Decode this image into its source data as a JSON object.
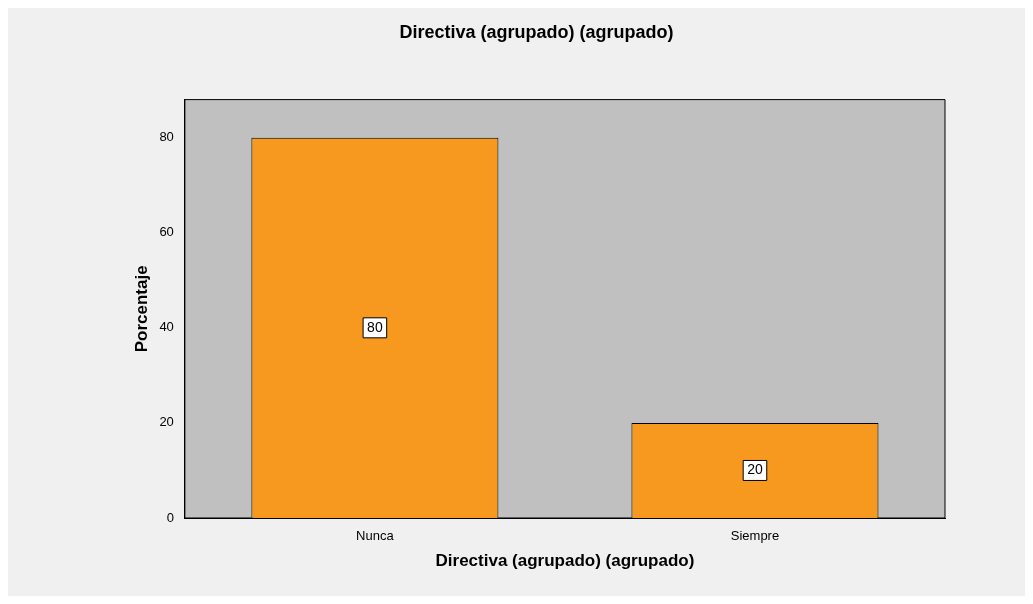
{
  "chart_data": {
    "type": "bar",
    "title": "Directiva (agrupado) (agrupado)",
    "xlabel": "Directiva (agrupado) (agrupado)",
    "ylabel": "Porcentaje",
    "categories": [
      "Nunca",
      "Siempre"
    ],
    "values": [
      80,
      20
    ],
    "color": "#f7991f",
    "ylim": [
      0,
      88
    ],
    "yticks": [
      0,
      20,
      40,
      60,
      80
    ],
    "grid": false,
    "legend": false,
    "data_labels": true
  }
}
